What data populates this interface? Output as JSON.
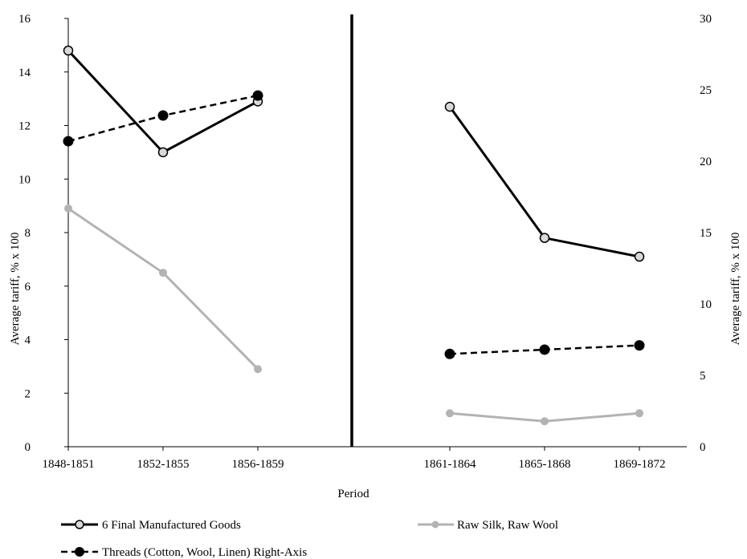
{
  "chart_data": {
    "type": "line",
    "categories": [
      "1848-1851",
      "1852-1855",
      "1856-1859",
      "1861-1864",
      "1865-1868",
      "1869-1872"
    ],
    "xlabel": "Period",
    "ylabel_left": "Average tariff, % x 100",
    "ylabel_right": "Average tariff, % x 100",
    "ylim_left": [
      0,
      16
    ],
    "yticks_left": [
      0,
      2,
      4,
      6,
      8,
      10,
      12,
      14,
      16
    ],
    "ylim_right": [
      0,
      30
    ],
    "yticks_right": [
      0,
      5,
      10,
      15,
      20,
      25,
      30
    ],
    "grid": false,
    "legend_position": "bottom-left",
    "separator_between": [
      "1856-1859",
      "1861-1864"
    ],
    "series": [
      {
        "name": "6 Final Manufactured Goods",
        "axis": "left",
        "style": "solid",
        "marker": "open-circle",
        "color": "#000000",
        "marker_fill": "#d9d9d9",
        "segments": [
          {
            "categories": [
              "1848-1851",
              "1852-1855",
              "1856-1859"
            ],
            "values": [
              14.8,
              11.0,
              12.9
            ]
          },
          {
            "categories": [
              "1861-1864",
              "1865-1868",
              "1869-1872"
            ],
            "values": [
              12.7,
              7.8,
              7.1
            ]
          }
        ]
      },
      {
        "name": "Raw Silk, Raw Wool",
        "axis": "left",
        "style": "solid",
        "marker": "filled-circle",
        "color": "#b3b3b3",
        "marker_fill": "#b3b3b3",
        "segments": [
          {
            "categories": [
              "1848-1851",
              "1852-1855",
              "1856-1859"
            ],
            "values": [
              8.9,
              6.5,
              2.9
            ]
          },
          {
            "categories": [
              "1861-1864",
              "1865-1868",
              "1869-1872"
            ],
            "values": [
              1.25,
              0.95,
              1.25
            ]
          }
        ]
      },
      {
        "name": "Threads (Cotton, Wool, Linen) Right-Axis",
        "axis": "right",
        "style": "dashed",
        "marker": "filled-circle",
        "color": "#000000",
        "marker_fill": "#000000",
        "segments": [
          {
            "categories": [
              "1848-1851",
              "1852-1855",
              "1856-1859"
            ],
            "values": [
              21.4,
              23.2,
              24.6
            ]
          },
          {
            "categories": [
              "1861-1864",
              "1865-1868",
              "1869-1872"
            ],
            "values": [
              6.5,
              6.8,
              7.1
            ]
          }
        ]
      }
    ]
  }
}
